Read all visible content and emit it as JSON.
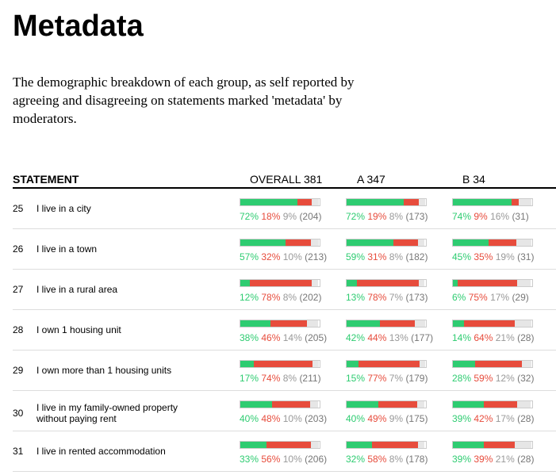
{
  "page": {
    "title": "Metadata",
    "description": "The demographic breakdown of each group, as self reported by agreeing and disagreeing on statements marked 'metadata' by moderators."
  },
  "table": {
    "headers": {
      "statement": "STATEMENT",
      "overall": "OVERALL 381",
      "group_a": "A 347",
      "group_b": "B 34"
    },
    "rows": [
      {
        "num": "25",
        "statement": "I live in a city",
        "cells": [
          {
            "agree": 72,
            "disagree": 18,
            "pass": 9,
            "agree_label": "72%",
            "disagree_label": "18%",
            "pass_label": "9%",
            "count_label": "(204)"
          },
          {
            "agree": 72,
            "disagree": 19,
            "pass": 8,
            "agree_label": "72%",
            "disagree_label": "19%",
            "pass_label": "8%",
            "count_label": "(173)"
          },
          {
            "agree": 74,
            "disagree": 9,
            "pass": 16,
            "agree_label": "74%",
            "disagree_label": "9%",
            "pass_label": "16%",
            "count_label": "(31)"
          }
        ]
      },
      {
        "num": "26",
        "statement": "I live in a town",
        "cells": [
          {
            "agree": 57,
            "disagree": 32,
            "pass": 10,
            "agree_label": "57%",
            "disagree_label": "32%",
            "pass_label": "10%",
            "count_label": "(213)"
          },
          {
            "agree": 59,
            "disagree": 31,
            "pass": 8,
            "agree_label": "59%",
            "disagree_label": "31%",
            "pass_label": "8%",
            "count_label": "(182)"
          },
          {
            "agree": 45,
            "disagree": 35,
            "pass": 19,
            "agree_label": "45%",
            "disagree_label": "35%",
            "pass_label": "19%",
            "count_label": "(31)"
          }
        ]
      },
      {
        "num": "27",
        "statement": "I live in a rural area",
        "cells": [
          {
            "agree": 12,
            "disagree": 78,
            "pass": 8,
            "agree_label": "12%",
            "disagree_label": "78%",
            "pass_label": "8%",
            "count_label": "(202)"
          },
          {
            "agree": 13,
            "disagree": 78,
            "pass": 7,
            "agree_label": "13%",
            "disagree_label": "78%",
            "pass_label": "7%",
            "count_label": "(173)"
          },
          {
            "agree": 6,
            "disagree": 75,
            "pass": 17,
            "agree_label": "6%",
            "disagree_label": "75%",
            "pass_label": "17%",
            "count_label": "(29)"
          }
        ]
      },
      {
        "num": "28",
        "statement": "I own 1 housing unit",
        "cells": [
          {
            "agree": 38,
            "disagree": 46,
            "pass": 14,
            "agree_label": "38%",
            "disagree_label": "46%",
            "pass_label": "14%",
            "count_label": "(205)"
          },
          {
            "agree": 42,
            "disagree": 44,
            "pass": 13,
            "agree_label": "42%",
            "disagree_label": "44%",
            "pass_label": "13%",
            "count_label": "(177)"
          },
          {
            "agree": 14,
            "disagree": 64,
            "pass": 21,
            "agree_label": "14%",
            "disagree_label": "64%",
            "pass_label": "21%",
            "count_label": "(28)"
          }
        ]
      },
      {
        "num": "29",
        "statement": "I own more than 1 housing units",
        "cells": [
          {
            "agree": 17,
            "disagree": 74,
            "pass": 8,
            "agree_label": "17%",
            "disagree_label": "74%",
            "pass_label": "8%",
            "count_label": "(211)"
          },
          {
            "agree": 15,
            "disagree": 77,
            "pass": 7,
            "agree_label": "15%",
            "disagree_label": "77%",
            "pass_label": "7%",
            "count_label": "(179)"
          },
          {
            "agree": 28,
            "disagree": 59,
            "pass": 12,
            "agree_label": "28%",
            "disagree_label": "59%",
            "pass_label": "12%",
            "count_label": "(32)"
          }
        ]
      },
      {
        "num": "30",
        "statement": "I live in my family-owned property without paying rent",
        "cells": [
          {
            "agree": 40,
            "disagree": 48,
            "pass": 10,
            "agree_label": "40%",
            "disagree_label": "48%",
            "pass_label": "10%",
            "count_label": "(203)"
          },
          {
            "agree": 40,
            "disagree": 49,
            "pass": 9,
            "agree_label": "40%",
            "disagree_label": "49%",
            "pass_label": "9%",
            "count_label": "(175)"
          },
          {
            "agree": 39,
            "disagree": 42,
            "pass": 17,
            "agree_label": "39%",
            "disagree_label": "42%",
            "pass_label": "17%",
            "count_label": "(28)"
          }
        ]
      },
      {
        "num": "31",
        "statement": "I live in rented accommodation",
        "cells": [
          {
            "agree": 33,
            "disagree": 56,
            "pass": 10,
            "agree_label": "33%",
            "disagree_label": "56%",
            "pass_label": "10%",
            "count_label": "(206)"
          },
          {
            "agree": 32,
            "disagree": 58,
            "pass": 8,
            "agree_label": "32%",
            "disagree_label": "58%",
            "pass_label": "8%",
            "count_label": "(178)"
          },
          {
            "agree": 39,
            "disagree": 39,
            "pass": 21,
            "agree_label": "39%",
            "disagree_label": "39%",
            "pass_label": "21%",
            "count_label": "(28)"
          }
        ]
      }
    ]
  },
  "colors": {
    "agree": "#2ecc71",
    "disagree": "#e74c3c",
    "pass": "#e6e6e6"
  }
}
